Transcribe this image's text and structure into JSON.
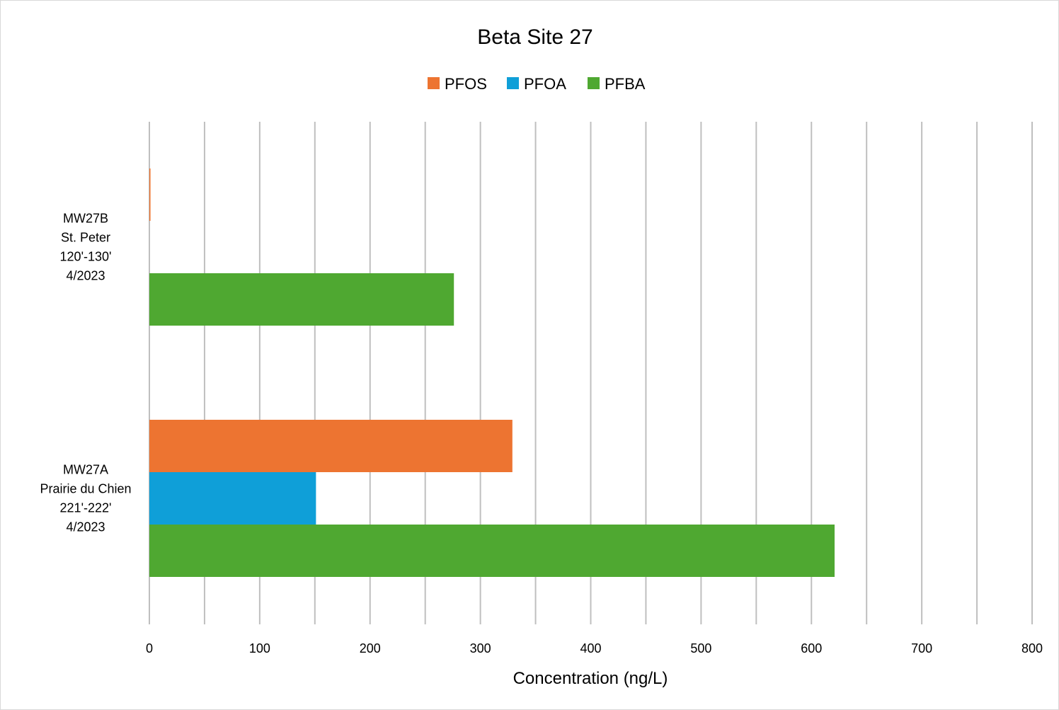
{
  "chart_data": {
    "type": "bar",
    "orientation": "horizontal",
    "title": "Beta Site 27",
    "xlabel": "Concentration (ng/L)",
    "ylabel": "",
    "xlim": [
      0,
      800
    ],
    "x_ticks": [
      "0",
      "100",
      "200",
      "300",
      "400",
      "500",
      "600",
      "700",
      "800"
    ],
    "grid": true,
    "legend_position": "top",
    "categories": [
      {
        "id": "mw27b",
        "lines": [
          "MW27B",
          "St. Peter",
          "120'-130'",
          "4/2023"
        ]
      },
      {
        "id": "mw27a",
        "lines": [
          "MW27A",
          "Prairie du Chien",
          "221'-222'",
          "4/2023"
        ]
      }
    ],
    "series": [
      {
        "name": "PFOS",
        "color": "#ed7431",
        "values": [
          1,
          329
        ]
      },
      {
        "name": "PFOA",
        "color": "#0f9fd8",
        "values": [
          0,
          151
        ]
      },
      {
        "name": "PFBA",
        "color": "#4fa831",
        "values": [
          276,
          621
        ]
      }
    ]
  }
}
